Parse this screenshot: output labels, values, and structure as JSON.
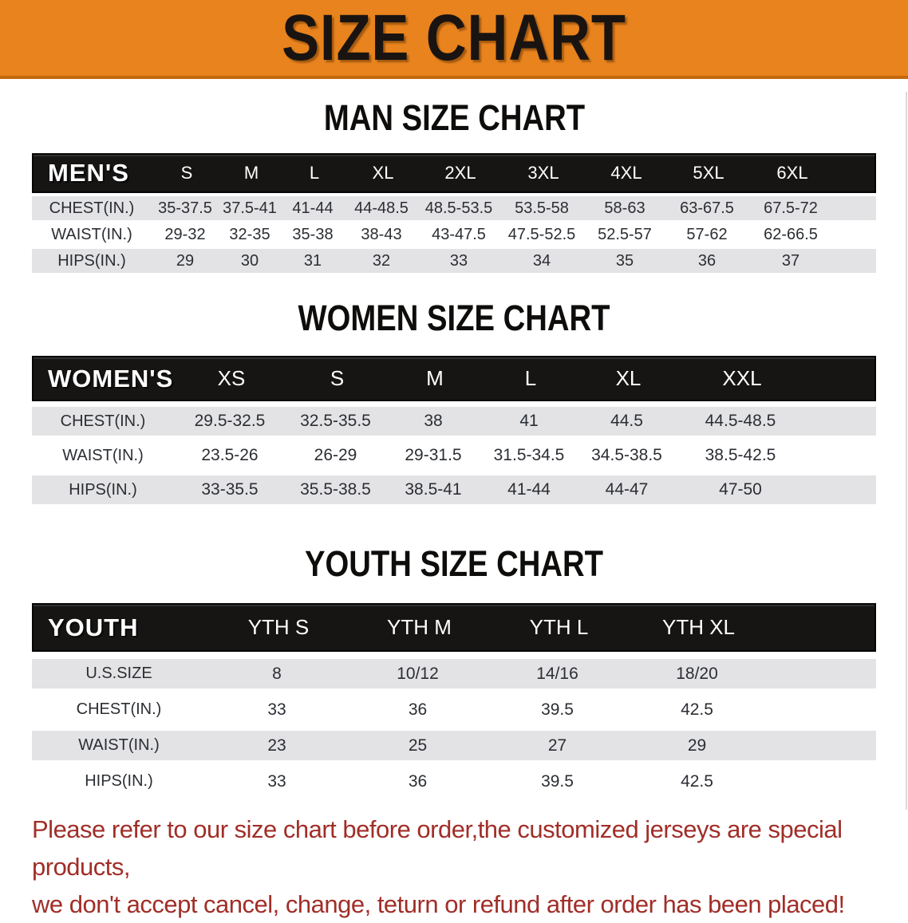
{
  "banner": {
    "title": "SIZE CHART",
    "bg_color": "#e8831d",
    "edge_color": "#c2690e"
  },
  "colors": {
    "table_header_bg": "#161514",
    "row_shade": "#e3e3e5",
    "disclaimer_text": "#a12e28"
  },
  "sections": [
    {
      "heading": "MAN SIZE CHART",
      "table": {
        "label": "MEN'S",
        "columns": [
          "S",
          "M",
          "L",
          "XL",
          "2XL",
          "3XL",
          "4XL",
          "5XL",
          "6XL"
        ],
        "rows": [
          {
            "label": "CHEST(IN.)",
            "values": [
              "35-37.5",
              "37.5-41",
              "41-44",
              "44-48.5",
              "48.5-53.5",
              "53.5-58",
              "58-63",
              "63-67.5",
              "67.5-72"
            ]
          },
          {
            "label": "WAIST(IN.)",
            "values": [
              "29-32",
              "32-35",
              "35-38",
              "38-43",
              "43-47.5",
              "47.5-52.5",
              "52.5-57",
              "57-62",
              "62-66.5"
            ]
          },
          {
            "label": "HIPS(IN.)",
            "values": [
              "29",
              "30",
              "31",
              "32",
              "33",
              "34",
              "35",
              "36",
              "37"
            ]
          }
        ]
      }
    },
    {
      "heading": "WOMEN SIZE CHART",
      "table": {
        "label": "WOMEN'S",
        "columns": [
          "XS",
          "S",
          "M",
          "L",
          "XL",
          "XXL"
        ],
        "rows": [
          {
            "label": "CHEST(IN.)",
            "values": [
              "29.5-32.5",
              "32.5-35.5",
              "38",
              "41",
              "44.5",
              "44.5-48.5"
            ]
          },
          {
            "label": "WAIST(IN.)",
            "values": [
              "23.5-26",
              "26-29",
              "29-31.5",
              "31.5-34.5",
              "34.5-38.5",
              "38.5-42.5"
            ]
          },
          {
            "label": "HIPS(IN.)",
            "values": [
              "33-35.5",
              "35.5-38.5",
              "38.5-41",
              "41-44",
              "44-47",
              "47-50"
            ]
          }
        ]
      }
    },
    {
      "heading": "YOUTH SIZE CHART",
      "table": {
        "label": "YOUTH",
        "columns": [
          "YTH S",
          "YTH M",
          "YTH L",
          "YTH XL"
        ],
        "rows": [
          {
            "label": "U.S.SIZE",
            "values": [
              "8",
              "10/12",
              "14/16",
              "18/20"
            ]
          },
          {
            "label": "CHEST(IN.)",
            "values": [
              "33",
              "36",
              "39.5",
              "42.5"
            ]
          },
          {
            "label": "WAIST(IN.)",
            "values": [
              "23",
              "25",
              "27",
              "29"
            ]
          },
          {
            "label": "HIPS(IN.)",
            "values": [
              "33",
              "36",
              "39.5",
              "42.5"
            ]
          }
        ]
      }
    }
  ],
  "disclaimer": {
    "line1": "Please refer to our size chart before order,the customized jerseys are special products,",
    "line2": "we don't accept cancel, change, teturn or refund after order has been placed!"
  }
}
